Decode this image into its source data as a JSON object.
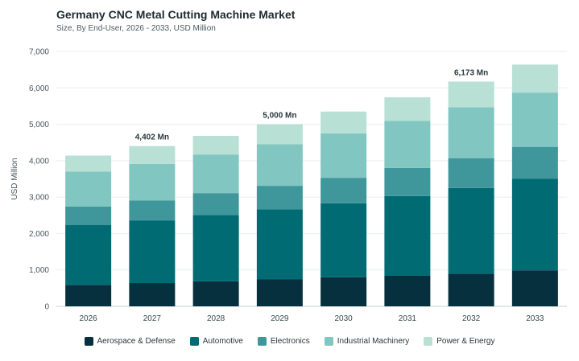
{
  "header": {
    "title": "Germany CNC Metal Cutting Machine Market",
    "subtitle": "Size, By End-User, 2026 - 2033, USD Million"
  },
  "chart_data": {
    "type": "bar",
    "stacked": true,
    "title": "Germany CNC Metal Cutting Machine Market",
    "subtitle": "Size, By End-User, 2026 - 2033, USD Million",
    "xlabel": "",
    "ylabel": "USD Million",
    "ylim": [
      0,
      7000
    ],
    "yticks": [
      0,
      1000,
      2000,
      3000,
      4000,
      5000,
      6000,
      7000
    ],
    "ytick_labels": [
      "0",
      "1,000",
      "2,000",
      "3,000",
      "4,000",
      "5,000",
      "6,000",
      "7,000"
    ],
    "grid": true,
    "legend_position": "bottom-center",
    "categories": [
      "2026",
      "2027",
      "2028",
      "2029",
      "2030",
      "2031",
      "2032",
      "2033"
    ],
    "series": [
      {
        "name": "Aerospace & Defense",
        "color": "#06303d",
        "values": [
          590,
          640,
          690,
          740,
          800,
          840,
          900,
          990
        ]
      },
      {
        "name": "Automotive",
        "color": "#006b73",
        "values": [
          1640,
          1720,
          1820,
          1920,
          2030,
          2190,
          2350,
          2510
        ]
      },
      {
        "name": "Electronics",
        "color": "#3f979b",
        "values": [
          510,
          550,
          600,
          650,
          700,
          770,
          820,
          880
        ]
      },
      {
        "name": "Industrial Machinery",
        "color": "#81c6c0",
        "values": [
          960,
          1000,
          1060,
          1140,
          1220,
          1290,
          1400,
          1490
        ]
      },
      {
        "name": "Power & Energy",
        "color": "#b8e0d4",
        "values": [
          440,
          492,
          510,
          550,
          600,
          650,
          703,
          770
        ]
      }
    ],
    "annotations": [
      {
        "category": "2027",
        "label": "4,402 Mn"
      },
      {
        "category": "2029",
        "label": "5,000 Mn"
      },
      {
        "category": "2032",
        "label": "6,173 Mn"
      }
    ]
  }
}
